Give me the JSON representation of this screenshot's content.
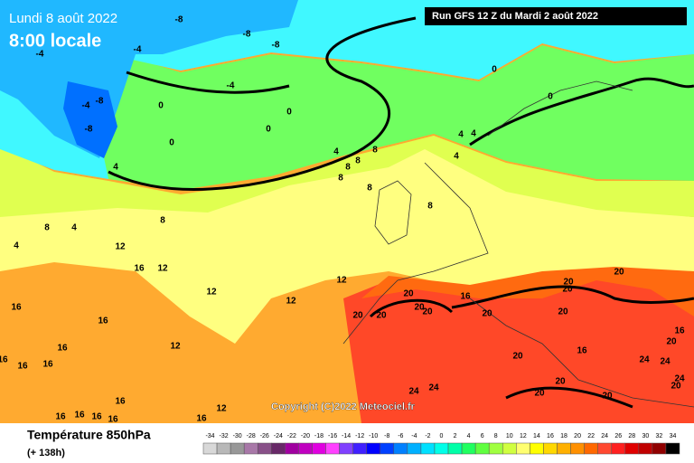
{
  "header": {
    "date": "Lundi 8 août 2022",
    "time": "8:00 locale",
    "run": "Run GFS 12 Z du Mardi 2 août 2022",
    "copyright": "Copyright (C)2022 Meteociel.fr"
  },
  "footer": {
    "title": "Température 850hPa",
    "lead": "(+ 138h)"
  },
  "map": {
    "contour_labels": [
      -8,
      -8,
      -8,
      -4,
      -4,
      -8,
      -4,
      -8,
      0,
      0,
      0,
      0,
      0,
      0,
      -4,
      4,
      4,
      8,
      8,
      8,
      8,
      4,
      4,
      4,
      8,
      4,
      4,
      8,
      12,
      16,
      12,
      12,
      12,
      12,
      16,
      16,
      16,
      12,
      16,
      16,
      16,
      16,
      16,
      16,
      16,
      16,
      12,
      16,
      20,
      20,
      20,
      20,
      20,
      16,
      20,
      20,
      20,
      20,
      20,
      20,
      16,
      20,
      24,
      20,
      24,
      20,
      24,
      24,
      16,
      20,
      24,
      20,
      8,
      8
    ]
  },
  "legend": {
    "ticks": [
      -34,
      -32,
      -30,
      -28,
      -26,
      -24,
      -22,
      -20,
      -18,
      -16,
      -14,
      -12,
      -10,
      -8,
      -6,
      -4,
      -2,
      0,
      2,
      4,
      6,
      8,
      10,
      12,
      14,
      16,
      18,
      20,
      22,
      24,
      26,
      28,
      30,
      32,
      34
    ],
    "colors": [
      "#d8d8d8",
      "#b8b8b8",
      "#989898",
      "#a878a8",
      "#885088",
      "#682868",
      "#a000a0",
      "#c000c0",
      "#e000e0",
      "#ff40ff",
      "#8040ff",
      "#4020ff",
      "#0000ff",
      "#0040ff",
      "#0080ff",
      "#00b0ff",
      "#00e0ff",
      "#00ffe8",
      "#00ffa8",
      "#20ff60",
      "#60ff40",
      "#a0ff40",
      "#d0ff40",
      "#ffff70",
      "#ffff00",
      "#ffd800",
      "#ffb000",
      "#ff9000",
      "#ff6800",
      "#ff4830",
      "#ff2020",
      "#e00000",
      "#c00000",
      "#900000",
      "#000000"
    ]
  }
}
